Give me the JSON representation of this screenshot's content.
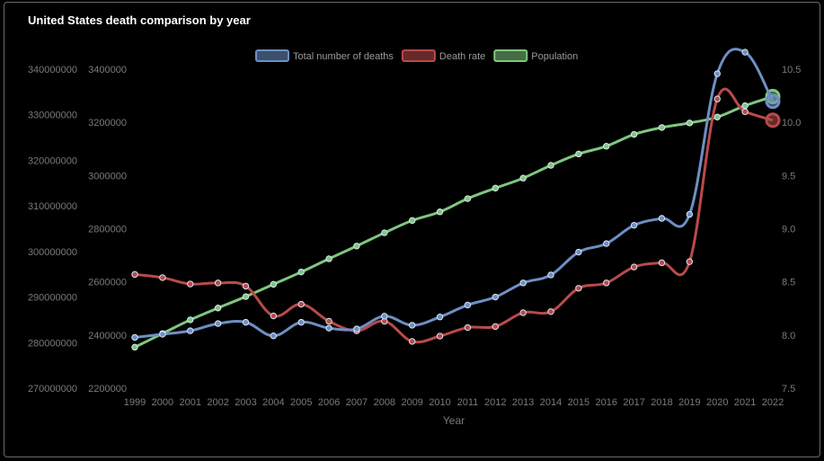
{
  "title": "United States death comparison by year",
  "chart_data": {
    "type": "line",
    "title": "United States death comparison by year",
    "xlabel": "Year",
    "x": [
      "1999",
      "2000",
      "2001",
      "2002",
      "2003",
      "2004",
      "2005",
      "2006",
      "2007",
      "2008",
      "2009",
      "2010",
      "2011",
      "2012",
      "2013",
      "2014",
      "2015",
      "2016",
      "2017",
      "2018",
      "2019",
      "2020",
      "2021",
      "2022"
    ],
    "axes": {
      "population_axis": {
        "min": 270000000,
        "max": 340000000,
        "ticks": [
          270000000,
          280000000,
          290000000,
          300000000,
          310000000,
          320000000,
          330000000,
          340000000
        ]
      },
      "deaths_axis": {
        "min": 2200000,
        "max": 3400000,
        "ticks": [
          2200000,
          2400000,
          2600000,
          2800000,
          3000000,
          3200000,
          3400000
        ]
      },
      "rate_axis": {
        "min": 7.5,
        "max": 10.5,
        "ticks": [
          "7.5",
          "8.0",
          "8.5",
          "9.0",
          "9.5",
          "10.0",
          "10.5"
        ]
      }
    },
    "series": [
      {
        "name": "Total number of deaths",
        "axis": "deaths_axis",
        "color": "#6e8fc4",
        "values": [
          2391000,
          2403000,
          2416000,
          2443000,
          2448000,
          2397000,
          2448000,
          2426000,
          2423000,
          2471000,
          2437000,
          2468000,
          2513000,
          2543000,
          2596000,
          2626000,
          2712000,
          2744000,
          2813000,
          2839000,
          2854000,
          3383000,
          3464000,
          3279000
        ]
      },
      {
        "name": "Death rate",
        "axis": "rate_axis",
        "color": "#b94a4a",
        "values": [
          8.57,
          8.54,
          8.48,
          8.49,
          8.46,
          8.18,
          8.29,
          8.13,
          8.04,
          8.13,
          7.94,
          7.99,
          8.07,
          8.08,
          8.21,
          8.22,
          8.44,
          8.49,
          8.64,
          8.68,
          8.69,
          10.22,
          10.1,
          10.02
        ]
      },
      {
        "name": "Population",
        "axis": "population_axis",
        "color": "#7fc77f",
        "values": [
          279000000,
          282000000,
          285000000,
          287600000,
          290100000,
          292800000,
          295500000,
          298400000,
          301200000,
          304100000,
          306800000,
          308700000,
          311600000,
          313900000,
          316100000,
          318900000,
          321400000,
          323100000,
          325700000,
          327200000,
          328200000,
          329500000,
          332000000,
          334000000
        ]
      }
    ],
    "legend": "top-center",
    "grid": false
  }
}
